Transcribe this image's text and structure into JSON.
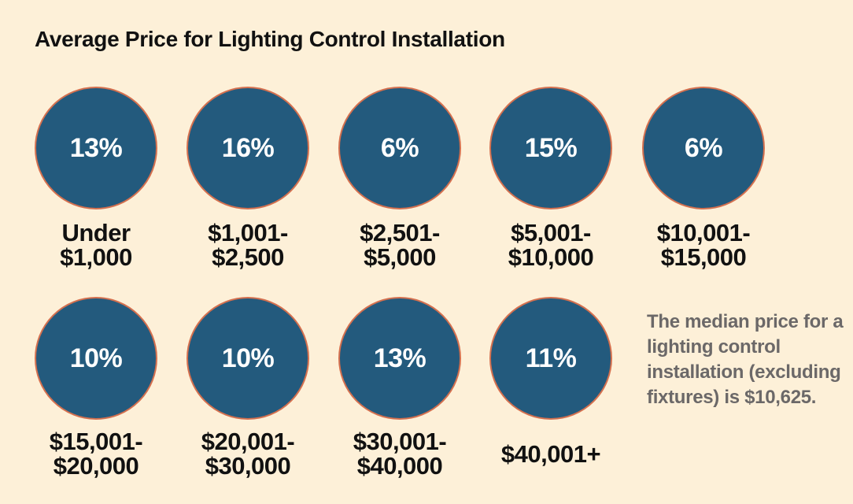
{
  "chart_data": {
    "type": "bubble-grid",
    "title": "Average Price for Lighting Control Installation",
    "categories": [
      [
        "Under",
        "$1,000"
      ],
      [
        "$1,001-",
        "$2,500"
      ],
      [
        "$2,501-",
        "$5,000"
      ],
      [
        "$5,001-",
        "$10,000"
      ],
      [
        "$10,001-",
        "$15,000"
      ],
      [
        "$15,001-",
        "$20,000"
      ],
      [
        "$20,001-",
        "$30,000"
      ],
      [
        "$30,001-",
        "$40,000"
      ],
      [
        "$40,001+"
      ]
    ],
    "values": [
      13,
      16,
      6,
      15,
      6,
      10,
      10,
      13,
      11
    ],
    "value_labels": [
      "13%",
      "16%",
      "6%",
      "15%",
      "6%",
      "10%",
      "10%",
      "13%",
      "11%"
    ],
    "unit": "%",
    "annotation": "The median price for a lighting control installation (excluding fixtures) is $10,625.",
    "colors": {
      "background": "#fdf0d8",
      "circle_fill": "#235a7d",
      "circle_border": "#d4704f",
      "value_text": "#ffffff",
      "label_text": "#111111",
      "note_text": "#6b6868"
    }
  }
}
